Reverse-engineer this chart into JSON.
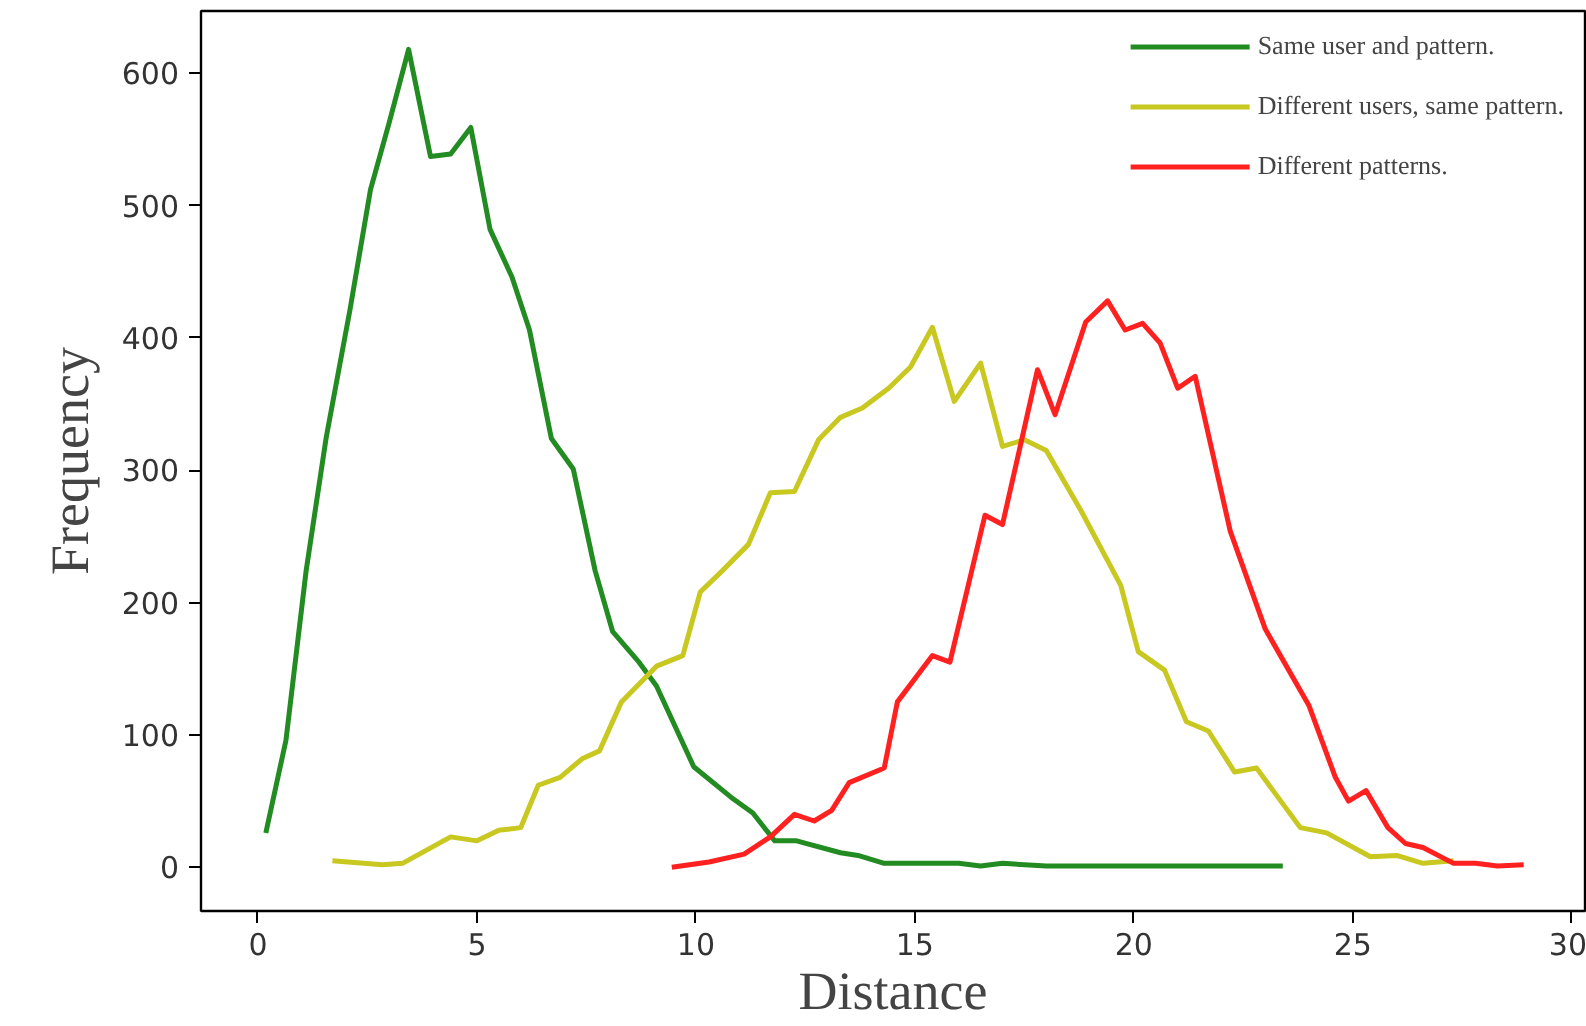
{
  "chart_data": {
    "type": "line",
    "xlabel": "Distance",
    "ylabel": "Frequency",
    "xlim": [
      -1.3,
      30.3
    ],
    "ylim": [
      -33,
      647
    ],
    "xticks": [
      0,
      5,
      10,
      15,
      20,
      25,
      30
    ],
    "yticks": [
      0,
      100,
      200,
      300,
      400,
      500,
      600
    ],
    "legend": "top right",
    "line_style": "solid",
    "series": [
      {
        "name": "Same user and pattern.",
        "color": "#228b22",
        "x": [
          0.18,
          0.64,
          1.1,
          1.56,
          2.1,
          2.57,
          3.0,
          3.44,
          3.94,
          4.4,
          4.86,
          5.3,
          5.8,
          6.2,
          6.7,
          7.2,
          7.7,
          8.1,
          8.7,
          9.1,
          9.95,
          10.8,
          11.3,
          11.8,
          12.3,
          13.3,
          13.7,
          14.3,
          15.0,
          16.0,
          16.5,
          17.0,
          18.0,
          19.0,
          20.0,
          21.0,
          22.0,
          23.4
        ],
        "values": [
          26,
          96,
          224,
          325,
          421,
          512,
          563,
          618,
          537,
          539,
          559,
          482,
          446,
          406,
          324,
          301,
          224,
          178,
          155,
          137,
          76,
          53,
          41,
          20,
          20,
          11,
          9,
          3,
          3,
          3,
          1,
          3,
          1,
          1,
          1,
          1,
          1,
          1
        ]
      },
      {
        "name": "Different users, same pattern.",
        "color": "#c8c820",
        "x": [
          1.7,
          2.84,
          3.3,
          4.4,
          5.0,
          5.5,
          6.0,
          6.4,
          6.9,
          7.4,
          7.8,
          8.3,
          9.1,
          9.7,
          10.1,
          10.6,
          11.2,
          11.7,
          12.25,
          12.8,
          13.3,
          13.8,
          14.4,
          14.9,
          15.4,
          15.9,
          16.5,
          17.0,
          17.5,
          18.0,
          18.8,
          19.7,
          20.1,
          20.7,
          21.2,
          21.7,
          22.3,
          22.8,
          23.8,
          24.4,
          25.4,
          26.0,
          26.6,
          27.3
        ],
        "values": [
          5,
          2,
          3,
          23,
          20,
          28,
          30,
          62,
          68,
          82,
          88,
          125,
          152,
          160,
          208,
          224,
          244,
          283,
          284,
          323,
          340,
          347,
          362,
          378,
          408,
          352,
          381,
          318,
          323,
          315,
          269,
          213,
          163,
          149,
          110,
          103,
          72,
          75,
          30,
          26,
          8,
          9,
          3,
          5
        ]
      },
      {
        "name": "Different patterns.",
        "color": "#ff2020",
        "x": [
          9.45,
          10.3,
          11.1,
          11.7,
          12.25,
          12.7,
          13.1,
          13.5,
          14.3,
          14.6,
          15.4,
          15.8,
          16.6,
          17.0,
          17.8,
          18.2,
          18.9,
          19.4,
          19.8,
          20.2,
          20.6,
          21.0,
          21.4,
          22.2,
          23.0,
          24.0,
          24.6,
          24.9,
          25.3,
          25.8,
          26.2,
          26.6,
          27.3,
          27.8,
          28.3,
          28.9
        ],
        "values": [
          0,
          4,
          10,
          23,
          40,
          35,
          43,
          64,
          75,
          125,
          160,
          155,
          266,
          259,
          376,
          342,
          412,
          428,
          406,
          411,
          396,
          362,
          371,
          254,
          180,
          122,
          68,
          50,
          58,
          30,
          18,
          15,
          3,
          3,
          1,
          2
        ]
      }
    ]
  }
}
